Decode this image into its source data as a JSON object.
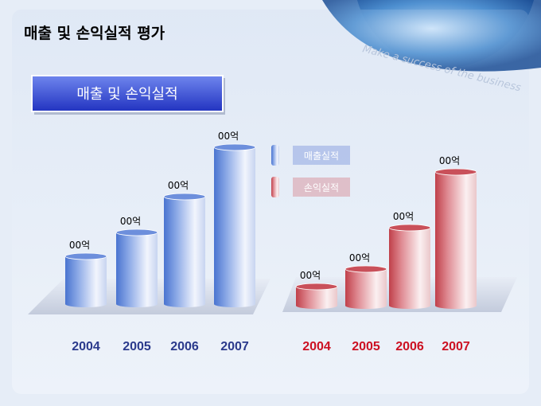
{
  "header": {
    "title": "매출 및 손익실적 평가",
    "watermark": "Make a success of the business"
  },
  "section": {
    "label": "매출 및 손익실적"
  },
  "legend": [
    "매출실적",
    "손익실적"
  ],
  "groups": [
    {
      "years": [
        "2004",
        "2005",
        "2006",
        "2007"
      ],
      "labels": [
        "00억",
        "00억",
        "00억",
        "00억"
      ]
    },
    {
      "years": [
        "2004",
        "2005",
        "2006",
        "2007"
      ],
      "labels": [
        "00억",
        "00억",
        "00억",
        "00억"
      ]
    }
  ]
}
